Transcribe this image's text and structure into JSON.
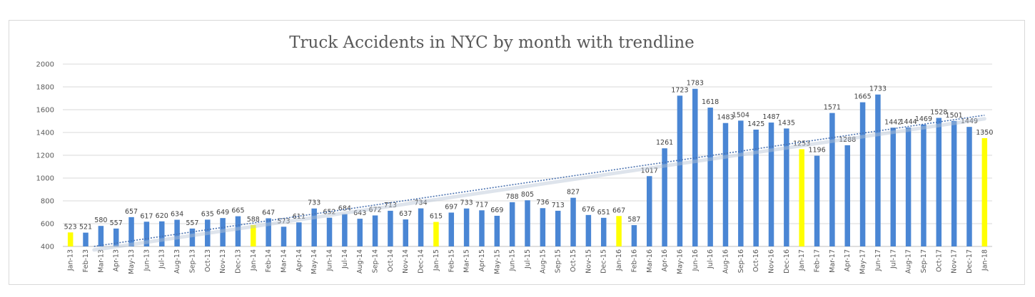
{
  "chart_data": {
    "type": "bar",
    "title": "Truck Accidents in NYC by month with trendline",
    "xlabel": "",
    "ylabel": "",
    "ylim": [
      400,
      2000
    ],
    "yticks": [
      400,
      600,
      800,
      1000,
      1200,
      1400,
      1600,
      1800,
      2000
    ],
    "grid": true,
    "legend": "none",
    "trendline": "linear",
    "colors": {
      "bar": "#4a86d4",
      "highlight": "#ffff00",
      "trend": "#4a72b0",
      "grid": "#d9d9d9",
      "text": "#595959"
    },
    "highlight_categories": [
      "Jan-13",
      "Jan-14",
      "Jan-15",
      "Jan-16",
      "Jan-17",
      "Jan-18"
    ],
    "categories": [
      "Jan-13",
      "Feb-13",
      "Mar-13",
      "Apr-13",
      "May-13",
      "Jun-13",
      "Jul-13",
      "Aug-13",
      "Sep-13",
      "Oct-13",
      "Nov-13",
      "Dec-13",
      "Jan-14",
      "Feb-14",
      "Mar-14",
      "Apr-14",
      "May-14",
      "Jun-14",
      "Jul-14",
      "Aug-14",
      "Sep-14",
      "Oct-14",
      "Nov-14",
      "Dec-14",
      "Jan-15",
      "Feb-15",
      "Mar-15",
      "Apr-15",
      "May-15",
      "Jun-15",
      "Jul-15",
      "Aug-15",
      "Sep-15",
      "Oct-15",
      "Nov-15",
      "Dec-15",
      "Jan-16",
      "Feb-16",
      "Mar-16",
      "Apr-16",
      "May-16",
      "Jun-16",
      "Jul-16",
      "Aug-16",
      "Sep-16",
      "Oct-16",
      "Nov-16",
      "Dec-16",
      "Jan-17",
      "Feb-17",
      "Mar-17",
      "Apr-17",
      "May-17",
      "Jun-17",
      "Jul-17",
      "Aug-17",
      "Sep-17",
      "Oct-17",
      "Nov-17",
      "Dec-17",
      "Jan-18"
    ],
    "values": [
      523,
      521,
      580,
      557,
      657,
      617,
      620,
      634,
      557,
      635,
      649,
      665,
      588,
      647,
      573,
      611,
      733,
      652,
      684,
      643,
      672,
      713,
      637,
      734,
      615,
      697,
      733,
      717,
      669,
      788,
      805,
      736,
      713,
      827,
      676,
      651,
      667,
      587,
      1017,
      1261,
      1723,
      1783,
      1618,
      1483,
      1504,
      1425,
      1487,
      1435,
      1253,
      1196,
      1571,
      1288,
      1665,
      1733,
      1442,
      1444,
      1469,
      1528,
      1501,
      1449,
      1350
    ]
  }
}
